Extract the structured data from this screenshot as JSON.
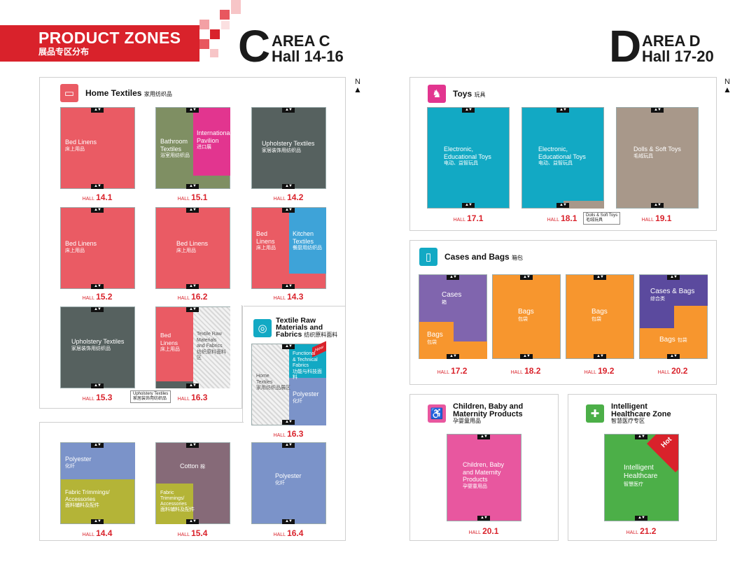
{
  "header": {
    "title": "PRODUCT ZONES",
    "subtitle": "展品专区分布"
  },
  "colors": {
    "brand": "#d9222b",
    "red": "#ea5b64",
    "olive": "#7f8f63",
    "magenta": "#e2358f",
    "slate": "#56615f",
    "blue": "#3ea3d8",
    "cyan": "#12a9c4",
    "taupe": "#a8988a",
    "purple": "#8065ae",
    "orange": "#f7962e",
    "indigo": "#5b4a9e",
    "periwinkle": "#7b93c9",
    "lime": "#b4b437",
    "mauve": "#866a78",
    "pink": "#e8579f",
    "green": "#4caf48"
  },
  "areaC": {
    "letter": "C",
    "line1": "AREA C",
    "line2": "Hall 14-16"
  },
  "areaD": {
    "letter": "D",
    "line1": "AREA D",
    "line2": "Hall 17-20"
  },
  "north": "N",
  "hall_prefix": "HALL",
  "zones": {
    "home": {
      "title": "Home Textiles",
      "zh": "家用纺织品"
    },
    "textile_raw": {
      "title1": "Textile Raw",
      "title2": "Materials and",
      "title3": "Fabrics",
      "zh": "纺织原料面料"
    },
    "toys": {
      "title": "Toys",
      "zh": "玩具"
    },
    "cases": {
      "title": "Cases and Bags",
      "zh": "箱包"
    },
    "children": {
      "title1": "Children, Baby and",
      "title2": "Maternity Products",
      "zh": "孕婴童用品"
    },
    "health": {
      "title1": "Intelligent",
      "title2": "Healthcare Zone",
      "zh": "智慧医疗专区"
    }
  },
  "halls": {
    "h141": {
      "num": "14.1",
      "a": "Bed Linens",
      "az": "床上用品"
    },
    "h151": {
      "num": "15.1",
      "a": "Bathroom",
      "a2": "Textiles",
      "az": "浴室用纺织品",
      "b": "International",
      "b2": "Pavilion",
      "bz": "进口展"
    },
    "h142": {
      "num": "14.2",
      "a": "Upholstery Textiles",
      "az": "家居装饰用纺织品"
    },
    "h152": {
      "num": "15.2",
      "a": "Bed Linens",
      "az": "床上用品"
    },
    "h162": {
      "num": "16.2",
      "a": "Bed Linens",
      "az": "床上用品"
    },
    "h143": {
      "num": "14.3",
      "a": "Bed",
      "a2": "Linens",
      "az": "床上用品",
      "b": "Kitchen",
      "b2": "Textiles",
      "bz": "餐厨用纺织品"
    },
    "h153": {
      "num": "15.3",
      "a": "Upholstery Textiles",
      "az": "家居装饰用纺织品"
    },
    "h163": {
      "num": "16.3",
      "a": "Bed",
      "a2": "Linens",
      "az": "床上用品",
      "b": "Textile Raw",
      "b2": "Materials",
      "b3": "and Fabrics",
      "bz": "纺织原料面料区",
      "callout": "Upholstery Textiles",
      "calloutz": "家居装饰用纺织品"
    },
    "h163b": {
      "num": "16.3",
      "a": "Home",
      "a2": "Textiles",
      "az": "家用纺织品展区",
      "b": "Functional",
      "b2": "& Technical",
      "b3": "Fabrics",
      "bz": "功能与科技面料",
      "c": "Polyester",
      "cz": "化纤",
      "badge": "New"
    },
    "h144": {
      "num": "14.4",
      "a": "Polyester",
      "az": "化纤",
      "b": "Fabric Trimmings/",
      "b2": "Accessories",
      "bz": "面料辅料及配件"
    },
    "h154": {
      "num": "15.4",
      "a": "Cotton",
      "az": "棉",
      "b": "Fabric",
      "b2": "Trimmings/",
      "b3": "Accessories",
      "bz": "面料辅料及配件"
    },
    "h164": {
      "num": "16.4",
      "a": "Polyester",
      "az": "化纤"
    },
    "h171": {
      "num": "17.1",
      "a": "Electronic,",
      "a2": "Educational Toys",
      "az": "电动、益智玩具"
    },
    "h181": {
      "num": "18.1",
      "a": "Electronic,",
      "a2": "Educational Toys",
      "az": "电动、益智玩具",
      "callout": "Dolls & Soft Toys",
      "calloutz": "毛绒玩具"
    },
    "h191": {
      "num": "19.1",
      "a": "Dolls & Soft Toys",
      "az": "毛绒玩具"
    },
    "h172": {
      "num": "17.2",
      "a": "Cases",
      "az": "箱",
      "b": "Bags",
      "bz": "包袋"
    },
    "h182": {
      "num": "18.2",
      "a": "Bags",
      "az": "包袋"
    },
    "h192": {
      "num": "19.2",
      "a": "Bags",
      "az": "包袋"
    },
    "h202": {
      "num": "20.2",
      "a": "Cases & Bags",
      "az": "综合类",
      "b": "Bags",
      "bz": "包袋"
    },
    "h201": {
      "num": "20.1",
      "a": "Children, Baby",
      "a2": "and Maternity",
      "a3": "Products",
      "az": "孕婴童用品"
    },
    "h212": {
      "num": "21.2",
      "a": "Intelligent",
      "a2": "Healthcare",
      "az": "智慧医疗",
      "badge": "Hot"
    }
  }
}
